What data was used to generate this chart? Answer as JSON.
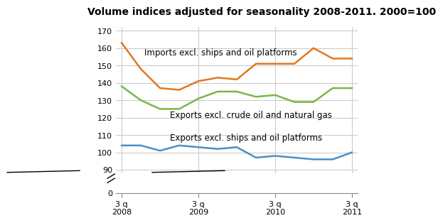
{
  "title": "Volume indices adjusted for seasonality 2008-2011. 2000=100",
  "x_positions": [
    0,
    1,
    2,
    3,
    4,
    5,
    6,
    7,
    8,
    9,
    10,
    11,
    12
  ],
  "x_tick_positions": [
    0,
    4,
    8,
    12
  ],
  "x_tick_labels": [
    "3 q\n2008",
    "3 q\n2009",
    "3 q\n2010",
    "3 q\n2011"
  ],
  "imports": [
    163,
    148,
    137,
    136,
    141,
    143,
    142,
    151,
    151,
    151,
    160,
    154,
    154
  ],
  "exports_crude": [
    138,
    130,
    125,
    125,
    131,
    135,
    135,
    132,
    133,
    129,
    129,
    137,
    137
  ],
  "exports_ships": [
    104,
    104,
    101,
    104,
    103,
    102,
    103,
    97,
    98,
    97,
    96,
    96,
    100
  ],
  "color_imports": "#E07820",
  "color_exports_crude": "#7AB648",
  "color_exports_ships": "#4A90C4",
  "label_imports": "Imports excl. ships and oil platforms",
  "label_exports_crude": "Exports excl. crude oil and natural gas",
  "label_exports_ships": "Exports excl. ships and oil platforms",
  "linewidth": 1.8,
  "grid_color": "#cccccc",
  "bg_color": "#ffffff",
  "title_fontsize": 10,
  "label_fontsize": 8.5,
  "tick_fontsize": 8
}
